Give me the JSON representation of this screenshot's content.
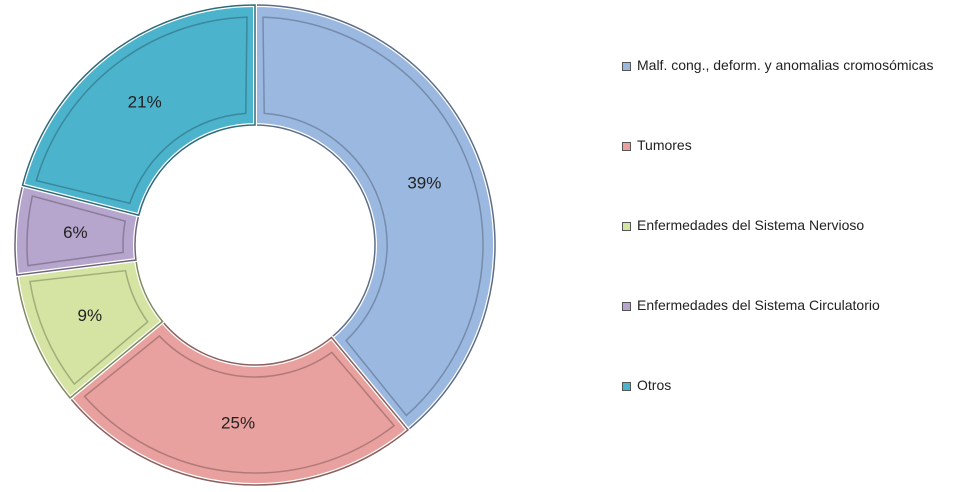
{
  "chart_data": {
    "type": "donut",
    "categories": [
      "Malf. cong., deform. y anomalias cromosómicas",
      "Tumores",
      "Enfermedades del Sistema Nervioso",
      "Enfermedades del Sistema Circulatorio",
      "Otros"
    ],
    "values": [
      39,
      25,
      9,
      6,
      21
    ],
    "value_labels": [
      "39%",
      "25%",
      "9%",
      "6%",
      "21%"
    ],
    "colors": [
      "#9bb8e0",
      "#e8a19e",
      "#d5e4a2",
      "#b6a5cc",
      "#4cb3cc"
    ],
    "legend": "right"
  }
}
